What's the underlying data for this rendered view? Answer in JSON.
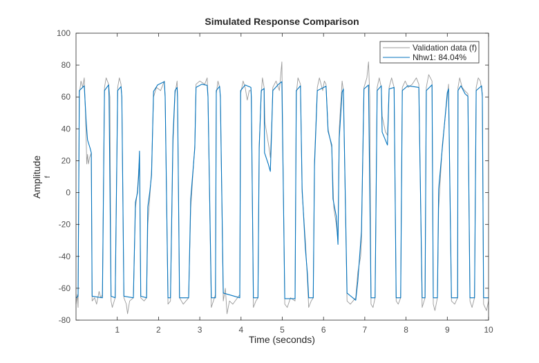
{
  "chart_data": {
    "type": "line",
    "title": "Simulated Response Comparison",
    "xlabel": "Time (seconds)",
    "ylabel": "Amplitude",
    "ylabel_sub": "f",
    "xlim": [
      0,
      10
    ],
    "ylim": [
      -80,
      100
    ],
    "xticks": [
      1,
      2,
      3,
      4,
      5,
      6,
      7,
      8,
      9,
      10
    ],
    "yticks": [
      -80,
      -60,
      -40,
      -20,
      0,
      20,
      40,
      60,
      80,
      100
    ],
    "grid": false,
    "legend_position": "top-right",
    "series": [
      {
        "name": "Validation data (f)",
        "color": "#999999",
        "points": [
          [
            0,
            -70
          ],
          [
            0.03,
            -64
          ],
          [
            0.05,
            -72
          ],
          [
            0.08,
            62
          ],
          [
            0.12,
            70
          ],
          [
            0.16,
            66
          ],
          [
            0.2,
            72
          ],
          [
            0.23,
            50
          ],
          [
            0.25,
            30
          ],
          [
            0.26,
            18
          ],
          [
            0.28,
            24
          ],
          [
            0.3,
            18
          ],
          [
            0.33,
            22
          ],
          [
            0.37,
            25
          ],
          [
            0.39,
            -68
          ],
          [
            0.45,
            -66
          ],
          [
            0.5,
            -70
          ],
          [
            0.56,
            -62
          ],
          [
            0.6,
            -66
          ],
          [
            0.64,
            -64
          ],
          [
            0.69,
            66
          ],
          [
            0.73,
            72
          ],
          [
            0.79,
            68
          ],
          [
            0.82,
            60
          ],
          [
            0.85,
            -68
          ],
          [
            0.88,
            -72
          ],
          [
            0.95,
            -66
          ],
          [
            1.01,
            66
          ],
          [
            1.05,
            72
          ],
          [
            1.09,
            68
          ],
          [
            1.11,
            60
          ],
          [
            1.16,
            -66
          ],
          [
            1.22,
            -70
          ],
          [
            1.25,
            -76
          ],
          [
            1.3,
            -68
          ],
          [
            1.39,
            -66
          ],
          [
            1.44,
            -10
          ],
          [
            1.49,
            2
          ],
          [
            1.52,
            14
          ],
          [
            1.54,
            22
          ],
          [
            1.57,
            -66
          ],
          [
            1.65,
            -68
          ],
          [
            1.71,
            -66
          ],
          [
            1.74,
            -20
          ],
          [
            1.79,
            -2
          ],
          [
            1.83,
            14
          ],
          [
            1.88,
            60
          ],
          [
            1.95,
            66
          ],
          [
            2.05,
            64
          ],
          [
            2.14,
            70
          ],
          [
            2.16,
            60
          ],
          [
            2.23,
            -70
          ],
          [
            2.29,
            -68
          ],
          [
            2.35,
            30
          ],
          [
            2.4,
            62
          ],
          [
            2.45,
            70
          ],
          [
            2.46,
            60
          ],
          [
            2.51,
            -66
          ],
          [
            2.6,
            -70
          ],
          [
            2.73,
            -66
          ],
          [
            2.78,
            -10
          ],
          [
            2.88,
            30
          ],
          [
            2.91,
            68
          ],
          [
            3.0,
            70
          ],
          [
            3.12,
            68
          ],
          [
            3.18,
            72
          ],
          [
            3.2,
            60
          ],
          [
            3.28,
            -72
          ],
          [
            3.33,
            -68
          ],
          [
            3.38,
            -64
          ],
          [
            3.4,
            62
          ],
          [
            3.44,
            70
          ],
          [
            3.48,
            66
          ],
          [
            3.5,
            60
          ],
          [
            3.57,
            -68
          ],
          [
            3.62,
            -60
          ],
          [
            3.66,
            -76
          ],
          [
            3.72,
            -68
          ],
          [
            3.8,
            -70
          ],
          [
            3.97,
            -64
          ],
          [
            3.99,
            62
          ],
          [
            4.05,
            70
          ],
          [
            4.1,
            66
          ],
          [
            4.15,
            58
          ],
          [
            4.2,
            64
          ],
          [
            4.24,
            64
          ],
          [
            4.25,
            60
          ],
          [
            4.3,
            -72
          ],
          [
            4.36,
            -68
          ],
          [
            4.41,
            -66
          ],
          [
            4.44,
            30
          ],
          [
            4.49,
            62
          ],
          [
            4.52,
            72
          ],
          [
            4.56,
            66
          ],
          [
            4.58,
            44
          ],
          [
            4.63,
            36
          ],
          [
            4.68,
            28
          ],
          [
            4.71,
            22
          ],
          [
            4.74,
            40
          ],
          [
            4.77,
            66
          ],
          [
            4.85,
            70
          ],
          [
            4.93,
            64
          ],
          [
            4.97,
            76
          ],
          [
            4.99,
            82
          ],
          [
            5.0,
            60
          ],
          [
            5.06,
            -70
          ],
          [
            5.12,
            -72
          ],
          [
            5.2,
            -66
          ],
          [
            5.31,
            -68
          ],
          [
            5.34,
            62
          ],
          [
            5.38,
            72
          ],
          [
            5.44,
            68
          ],
          [
            5.48,
            0
          ],
          [
            5.56,
            -30
          ],
          [
            5.61,
            -55
          ],
          [
            5.64,
            -72
          ],
          [
            5.7,
            -68
          ],
          [
            5.75,
            -66
          ],
          [
            5.78,
            20
          ],
          [
            5.85,
            66
          ],
          [
            5.9,
            72
          ],
          [
            5.98,
            64
          ],
          [
            6.02,
            70
          ],
          [
            6.06,
            68
          ],
          [
            6.11,
            40
          ],
          [
            6.2,
            28
          ],
          [
            6.25,
            -10
          ],
          [
            6.31,
            -20
          ],
          [
            6.35,
            -30
          ],
          [
            6.38,
            40
          ],
          [
            6.45,
            70
          ],
          [
            6.48,
            64
          ],
          [
            6.57,
            -68
          ],
          [
            6.65,
            -70
          ],
          [
            6.78,
            -66
          ],
          [
            6.83,
            -50
          ],
          [
            6.9,
            -40
          ],
          [
            6.92,
            -30
          ],
          [
            6.98,
            66
          ],
          [
            7.05,
            72
          ],
          [
            7.09,
            82
          ],
          [
            7.12,
            60
          ],
          [
            7.15,
            -70
          ],
          [
            7.2,
            -72
          ],
          [
            7.25,
            -66
          ],
          [
            7.3,
            66
          ],
          [
            7.35,
            72
          ],
          [
            7.4,
            66
          ],
          [
            7.42,
            48
          ],
          [
            7.5,
            38
          ],
          [
            7.55,
            36
          ],
          [
            7.59,
            66
          ],
          [
            7.65,
            72
          ],
          [
            7.71,
            66
          ],
          [
            7.76,
            -68
          ],
          [
            7.81,
            -70
          ],
          [
            7.87,
            -66
          ],
          [
            7.91,
            66
          ],
          [
            7.98,
            70
          ],
          [
            8.05,
            66
          ],
          [
            8.15,
            68
          ],
          [
            8.25,
            72
          ],
          [
            8.31,
            68
          ],
          [
            8.39,
            -72
          ],
          [
            8.46,
            -66
          ],
          [
            8.49,
            66
          ],
          [
            8.55,
            74
          ],
          [
            8.63,
            70
          ],
          [
            8.66,
            -70
          ],
          [
            8.7,
            -74
          ],
          [
            8.76,
            -66
          ],
          [
            8.79,
            -10
          ],
          [
            8.88,
            30
          ],
          [
            9.0,
            60
          ],
          [
            9.03,
            68
          ],
          [
            9.1,
            -68
          ],
          [
            9.18,
            -70
          ],
          [
            9.25,
            -66
          ],
          [
            9.26,
            66
          ],
          [
            9.3,
            72
          ],
          [
            9.36,
            66
          ],
          [
            9.42,
            64
          ],
          [
            9.5,
            62
          ],
          [
            9.55,
            -68
          ],
          [
            9.6,
            -72
          ],
          [
            9.66,
            -66
          ],
          [
            9.7,
            66
          ],
          [
            9.75,
            72
          ],
          [
            9.8,
            70
          ],
          [
            9.85,
            62
          ],
          [
            9.88,
            -70
          ],
          [
            9.95,
            -74
          ],
          [
            10.0,
            -68
          ]
        ]
      },
      {
        "name": "Nhw1: 84.04%",
        "color": "#0072BD",
        "points": [
          [
            0,
            -66
          ],
          [
            0.05,
            -65
          ],
          [
            0.08,
            64
          ],
          [
            0.2,
            67
          ],
          [
            0.25,
            43
          ],
          [
            0.28,
            33
          ],
          [
            0.34,
            28
          ],
          [
            0.37,
            25
          ],
          [
            0.39,
            -65
          ],
          [
            0.64,
            -66
          ],
          [
            0.69,
            64
          ],
          [
            0.79,
            67.6
          ],
          [
            0.8,
            60
          ],
          [
            0.85,
            -65
          ],
          [
            0.95,
            -66
          ],
          [
            1.01,
            64
          ],
          [
            1.09,
            66.5
          ],
          [
            1.11,
            60
          ],
          [
            1.16,
            -65
          ],
          [
            1.39,
            -66
          ],
          [
            1.44,
            -6
          ],
          [
            1.49,
            0
          ],
          [
            1.52,
            11
          ],
          [
            1.54,
            26
          ],
          [
            1.57,
            -65
          ],
          [
            1.71,
            -66
          ],
          [
            1.74,
            -9
          ],
          [
            1.79,
            1
          ],
          [
            1.83,
            11
          ],
          [
            1.88,
            63.5
          ],
          [
            1.98,
            67.6
          ],
          [
            2.14,
            69.6
          ],
          [
            2.16,
            60
          ],
          [
            2.23,
            -66
          ],
          [
            2.29,
            -66
          ],
          [
            2.35,
            35
          ],
          [
            2.4,
            64
          ],
          [
            2.45,
            66
          ],
          [
            2.46,
            60
          ],
          [
            2.51,
            -66
          ],
          [
            2.73,
            -66
          ],
          [
            2.78,
            -4
          ],
          [
            2.88,
            28
          ],
          [
            2.91,
            66
          ],
          [
            3.05,
            68
          ],
          [
            3.18,
            67.3
          ],
          [
            3.2,
            60
          ],
          [
            3.28,
            -66
          ],
          [
            3.38,
            -66
          ],
          [
            3.4,
            64
          ],
          [
            3.48,
            66.7
          ],
          [
            3.5,
            60
          ],
          [
            3.57,
            -63
          ],
          [
            3.97,
            -66
          ],
          [
            3.99,
            64
          ],
          [
            4.1,
            67.5
          ],
          [
            4.24,
            66
          ],
          [
            4.25,
            60
          ],
          [
            4.3,
            -66
          ],
          [
            4.41,
            -66
          ],
          [
            4.44,
            28
          ],
          [
            4.49,
            64
          ],
          [
            4.56,
            65.3
          ],
          [
            4.57,
            25
          ],
          [
            4.66,
            18
          ],
          [
            4.71,
            13.3
          ],
          [
            4.74,
            37
          ],
          [
            4.77,
            64
          ],
          [
            4.91,
            68
          ],
          [
            4.99,
            69.6
          ],
          [
            5.06,
            -66.5
          ],
          [
            5.31,
            -66.5
          ],
          [
            5.34,
            64
          ],
          [
            5.44,
            67
          ],
          [
            5.48,
            2.4
          ],
          [
            5.56,
            -35
          ],
          [
            5.61,
            -51
          ],
          [
            5.64,
            -66
          ],
          [
            5.75,
            -66
          ],
          [
            5.78,
            16.7
          ],
          [
            5.85,
            64
          ],
          [
            6.06,
            66.7
          ],
          [
            6.11,
            38.4
          ],
          [
            6.2,
            29.8
          ],
          [
            6.23,
            -4
          ],
          [
            6.31,
            -15
          ],
          [
            6.35,
            -32.5
          ],
          [
            6.38,
            34
          ],
          [
            6.45,
            63
          ],
          [
            6.48,
            65
          ],
          [
            6.57,
            -63
          ],
          [
            6.78,
            -67.5
          ],
          [
            6.83,
            -55.6
          ],
          [
            6.92,
            -24
          ],
          [
            6.98,
            65
          ],
          [
            7.09,
            67.5
          ],
          [
            7.15,
            -66
          ],
          [
            7.25,
            -66
          ],
          [
            7.3,
            64
          ],
          [
            7.4,
            67
          ],
          [
            7.42,
            38
          ],
          [
            7.55,
            29.8
          ],
          [
            7.59,
            65
          ],
          [
            7.71,
            66
          ],
          [
            7.76,
            -66
          ],
          [
            7.87,
            -66
          ],
          [
            7.91,
            64
          ],
          [
            8.04,
            67
          ],
          [
            8.31,
            66
          ],
          [
            8.39,
            -66
          ],
          [
            8.46,
            -66
          ],
          [
            8.49,
            64
          ],
          [
            8.63,
            67.6
          ],
          [
            8.66,
            -66
          ],
          [
            8.76,
            -66
          ],
          [
            8.79,
            2.4
          ],
          [
            8.88,
            28
          ],
          [
            9.0,
            62.7
          ],
          [
            9.03,
            65
          ],
          [
            9.1,
            -66
          ],
          [
            9.25,
            -66
          ],
          [
            9.26,
            64
          ],
          [
            9.33,
            67
          ],
          [
            9.43,
            62
          ],
          [
            9.5,
            60.4
          ],
          [
            9.55,
            -66
          ],
          [
            9.66,
            -66
          ],
          [
            9.7,
            64
          ],
          [
            9.83,
            67
          ],
          [
            9.85,
            60
          ],
          [
            9.88,
            -66
          ],
          [
            10.0,
            -66
          ]
        ]
      }
    ]
  }
}
